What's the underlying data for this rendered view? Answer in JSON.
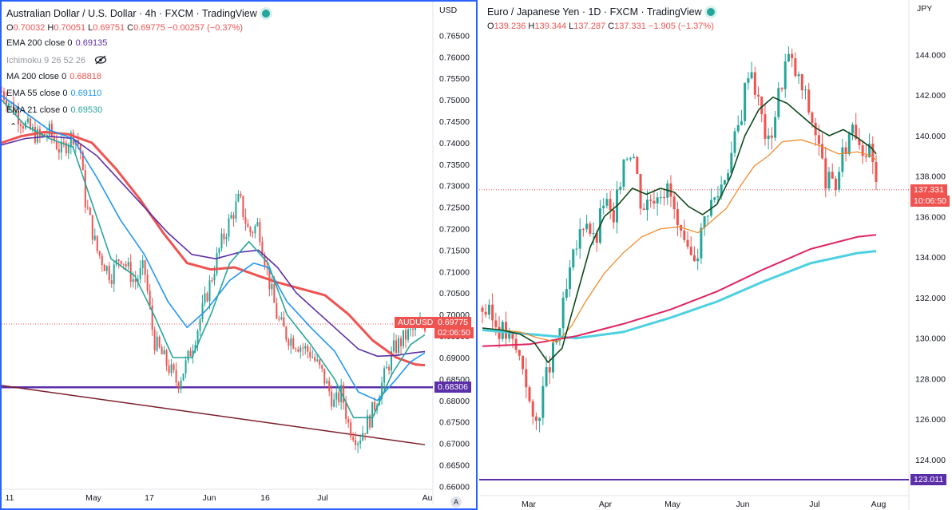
{
  "left_chart": {
    "title": "Australian Dollar / U.S. Dollar · 4h · FXCM · TradingView",
    "ohlc": {
      "o": "0.70032",
      "h": "0.70051",
      "l": "0.69751",
      "c": "0.69775",
      "chg": "−0.00257 (−0.37%)"
    },
    "indicators": [
      {
        "label": "EMA 200 close 0",
        "value": "0.69135",
        "color": "#5b2fa8"
      },
      {
        "label": "Ichimoku 9 26 52 26",
        "value": "",
        "color": "#9598a1"
      },
      {
        "label": "MA 200 close 0",
        "value": "0.68818",
        "color": "#ef5350"
      },
      {
        "label": "EMA 55 close 0",
        "value": "0.69110",
        "color": "#2196f3"
      },
      {
        "label": "EMA 21 close 0",
        "value": "0.69530",
        "color": "#26a69a"
      }
    ],
    "currency": "USD",
    "price_tag": {
      "symbol": "AUDUSD",
      "price": "0.69775",
      "countdown": "02:06:50"
    },
    "line_tag": "0.68306",
    "colors": {
      "ema200": "#5b2fa8",
      "ma200": "#ef5350",
      "ema55": "#2196f3",
      "ema21": "#26a69a",
      "up": "#26a69a",
      "down": "#ef5350",
      "hline": "#5b2fa8",
      "trend": "#7b1f2a"
    },
    "chart_data": {
      "type": "candlestick",
      "y_ticks": [
        "0.76500",
        "0.76000",
        "0.75500",
        "0.75000",
        "0.74500",
        "0.74000",
        "0.73500",
        "0.73000",
        "0.72500",
        "0.72000",
        "0.71500",
        "0.71000",
        "0.70500",
        "0.70000",
        "0.69500",
        "0.69000",
        "0.68500",
        "0.68000",
        "0.67500",
        "0.67000",
        "0.66500",
        "0.66000"
      ],
      "x_ticks": [
        "11",
        "May",
        "17",
        "Jun",
        "16",
        "Jul",
        "Au"
      ],
      "ylim": [
        0.6597,
        0.7673
      ],
      "price_path": [
        [
          0,
          0.752
        ],
        [
          10,
          0.744
        ],
        [
          16,
          0.741
        ],
        [
          20,
          0.7425
        ],
        [
          25,
          0.738
        ],
        [
          30,
          0.742
        ],
        [
          33,
          0.739
        ],
        [
          35,
          0.727
        ],
        [
          40,
          0.715
        ],
        [
          46,
          0.709
        ],
        [
          50,
          0.714
        ],
        [
          56,
          0.7075
        ],
        [
          60,
          0.711
        ],
        [
          64,
          0.694
        ],
        [
          70,
          0.688
        ],
        [
          74,
          0.684
        ],
        [
          78,
          0.689
        ],
        [
          82,
          0.696
        ],
        [
          88,
          0.708
        ],
        [
          92,
          0.716
        ],
        [
          96,
          0.722
        ],
        [
          100,
          0.727
        ],
        [
          104,
          0.719
        ],
        [
          108,
          0.721
        ],
        [
          112,
          0.709
        ],
        [
          116,
          0.699
        ],
        [
          120,
          0.695
        ],
        [
          125,
          0.693
        ],
        [
          130,
          0.691
        ],
        [
          135,
          0.686
        ],
        [
          140,
          0.679
        ],
        [
          143,
          0.682
        ],
        [
          146,
          0.674
        ],
        [
          150,
          0.671
        ],
        [
          155,
          0.676
        ],
        [
          160,
          0.684
        ],
        [
          165,
          0.692
        ],
        [
          170,
          0.695
        ],
        [
          175,
          0.697
        ],
        [
          178,
          0.6978
        ]
      ],
      "ema21_path": [
        [
          0,
          0.75
        ],
        [
          10,
          0.744
        ],
        [
          20,
          0.741
        ],
        [
          30,
          0.739
        ],
        [
          38,
          0.726
        ],
        [
          46,
          0.713
        ],
        [
          56,
          0.709
        ],
        [
          64,
          0.7
        ],
        [
          72,
          0.69
        ],
        [
          80,
          0.69
        ],
        [
          88,
          0.7
        ],
        [
          96,
          0.712
        ],
        [
          104,
          0.717
        ],
        [
          112,
          0.712
        ],
        [
          120,
          0.7
        ],
        [
          130,
          0.693
        ],
        [
          140,
          0.685
        ],
        [
          148,
          0.676
        ],
        [
          156,
          0.676
        ],
        [
          164,
          0.686
        ],
        [
          172,
          0.693
        ],
        [
          178,
          0.6953
        ]
      ],
      "ema55_path": [
        [
          0,
          0.751
        ],
        [
          10,
          0.747
        ],
        [
          20,
          0.743
        ],
        [
          30,
          0.741
        ],
        [
          40,
          0.732
        ],
        [
          50,
          0.722
        ],
        [
          60,
          0.714
        ],
        [
          70,
          0.703
        ],
        [
          78,
          0.697
        ],
        [
          86,
          0.701
        ],
        [
          96,
          0.708
        ],
        [
          106,
          0.712
        ],
        [
          112,
          0.711
        ],
        [
          120,
          0.703
        ],
        [
          130,
          0.697
        ],
        [
          140,
          0.6915
        ],
        [
          150,
          0.682
        ],
        [
          158,
          0.68
        ],
        [
          166,
          0.685
        ],
        [
          172,
          0.689
        ],
        [
          178,
          0.6911
        ]
      ],
      "ema200_path": [
        [
          0,
          0.7395
        ],
        [
          10,
          0.741
        ],
        [
          20,
          0.7415
        ],
        [
          30,
          0.741
        ],
        [
          40,
          0.737
        ],
        [
          50,
          0.731
        ],
        [
          60,
          0.725
        ],
        [
          70,
          0.719
        ],
        [
          80,
          0.714
        ],
        [
          90,
          0.713
        ],
        [
          100,
          0.7145
        ],
        [
          108,
          0.715
        ],
        [
          116,
          0.711
        ],
        [
          124,
          0.705
        ],
        [
          132,
          0.701
        ],
        [
          140,
          0.697
        ],
        [
          150,
          0.692
        ],
        [
          158,
          0.6903
        ],
        [
          166,
          0.6905
        ],
        [
          172,
          0.691
        ],
        [
          178,
          0.6914
        ]
      ],
      "ma200_path": [
        [
          0,
          0.74
        ],
        [
          8,
          0.7415
        ],
        [
          18,
          0.7425
        ],
        [
          28,
          0.742
        ],
        [
          38,
          0.74
        ],
        [
          48,
          0.734
        ],
        [
          58,
          0.727
        ],
        [
          68,
          0.719
        ],
        [
          78,
          0.712
        ],
        [
          88,
          0.7105
        ],
        [
          98,
          0.711
        ],
        [
          108,
          0.709
        ],
        [
          116,
          0.7075
        ],
        [
          126,
          0.706
        ],
        [
          136,
          0.7045
        ],
        [
          146,
          0.7
        ],
        [
          156,
          0.694
        ],
        [
          166,
          0.69
        ],
        [
          174,
          0.6884
        ],
        [
          178,
          0.6882
        ]
      ],
      "hline": 0.68306,
      "trendline": [
        [
          0,
          0.6835
        ],
        [
          178,
          0.6697
        ]
      ]
    }
  },
  "right_chart": {
    "title": "Euro / Japanese Yen · 1D · FXCM · TradingView",
    "ohlc": {
      "o": "139.236",
      "h": "139.344",
      "l": "137.287",
      "c": "137.331",
      "chg": "−1.905 (−1.37%)"
    },
    "currency": "JPY",
    "price_tag": {
      "price": "137.331",
      "countdown": "10:06:50"
    },
    "line_tag": "123.011",
    "colors": {
      "ma_a": "#0d4a1c",
      "ma_b": "#f0841f",
      "ma_c": "#e0245e",
      "ma_d": "#4dd0e1",
      "up": "#26a69a",
      "down": "#ef5350",
      "hline": "#5b2fa8"
    },
    "chart_data": {
      "type": "candlestick",
      "y_ticks": [
        "144.000",
        "142.000",
        "140.000",
        "138.000",
        "136.000",
        "134.000",
        "132.000",
        "130.000",
        "128.000",
        "126.000",
        "124.000"
      ],
      "x_ticks": [
        "Mar",
        "Apr",
        "May",
        "Jun",
        "Jul",
        "Aug"
      ],
      "ylim": [
        122.3,
        146.7
      ],
      "price_path": [
        [
          0,
          131.5
        ],
        [
          5,
          130.8
        ],
        [
          10,
          130.2
        ],
        [
          14,
          129.5
        ],
        [
          18,
          128.5
        ],
        [
          22,
          125.3
        ],
        [
          26,
          127.5
        ],
        [
          32,
          130.0
        ],
        [
          38,
          133.5
        ],
        [
          44,
          136.2
        ],
        [
          48,
          134.5
        ],
        [
          52,
          137.0
        ],
        [
          56,
          135.5
        ],
        [
          60,
          139.0
        ],
        [
          64,
          139.5
        ],
        [
          68,
          136.5
        ],
        [
          72,
          137.0
        ],
        [
          76,
          137.5
        ],
        [
          80,
          137.2
        ],
        [
          84,
          135.0
        ],
        [
          88,
          133.8
        ],
        [
          92,
          134.5
        ],
        [
          96,
          136.5
        ],
        [
          100,
          137.0
        ],
        [
          106,
          139.0
        ],
        [
          110,
          140.8
        ],
        [
          114,
          143.8
        ],
        [
          118,
          141.5
        ],
        [
          122,
          139.5
        ],
        [
          126,
          141.8
        ],
        [
          130,
          144.0
        ],
        [
          134,
          143.0
        ],
        [
          138,
          141.8
        ],
        [
          142,
          140.3
        ],
        [
          146,
          138.0
        ],
        [
          150,
          137.3
        ],
        [
          154,
          139.0
        ],
        [
          158,
          140.8
        ],
        [
          162,
          139.5
        ],
        [
          166,
          139.0
        ],
        [
          168,
          137.33
        ]
      ],
      "ma_a_path": [
        [
          0,
          130.5
        ],
        [
          8,
          130.4
        ],
        [
          16,
          130.2
        ],
        [
          22,
          129.8
        ],
        [
          28,
          128.8
        ],
        [
          34,
          129.5
        ],
        [
          40,
          132.0
        ],
        [
          46,
          134.5
        ],
        [
          52,
          136.0
        ],
        [
          58,
          136.6
        ],
        [
          64,
          137.4
        ],
        [
          70,
          137.1
        ],
        [
          76,
          137.4
        ],
        [
          82,
          137.2
        ],
        [
          88,
          136.5
        ],
        [
          94,
          136.1
        ],
        [
          100,
          136.6
        ],
        [
          106,
          138.0
        ],
        [
          112,
          140.0
        ],
        [
          118,
          141.3
        ],
        [
          124,
          141.9
        ],
        [
          130,
          141.6
        ],
        [
          136,
          141.0
        ],
        [
          142,
          140.4
        ],
        [
          148,
          140.0
        ],
        [
          154,
          140.3
        ],
        [
          160,
          139.9
        ],
        [
          166,
          139.4
        ],
        [
          168,
          139.1
        ]
      ],
      "ma_b_path": [
        [
          0,
          130.5
        ],
        [
          8,
          130.4
        ],
        [
          16,
          130.3
        ],
        [
          24,
          130.0
        ],
        [
          32,
          129.8
        ],
        [
          38,
          130.6
        ],
        [
          44,
          131.8
        ],
        [
          52,
          133.2
        ],
        [
          60,
          134.2
        ],
        [
          68,
          135.0
        ],
        [
          76,
          135.4
        ],
        [
          84,
          135.5
        ],
        [
          92,
          135.2
        ],
        [
          98,
          135.8
        ],
        [
          104,
          136.4
        ],
        [
          110,
          137.5
        ],
        [
          116,
          138.5
        ],
        [
          122,
          139.0
        ],
        [
          128,
          139.7
        ],
        [
          136,
          139.8
        ],
        [
          144,
          139.5
        ],
        [
          152,
          139.1
        ],
        [
          160,
          139.2
        ],
        [
          166,
          139.0
        ],
        [
          168,
          138.8
        ]
      ],
      "ma_c_path": [
        [
          0,
          129.6
        ],
        [
          20,
          129.7
        ],
        [
          40,
          130.1
        ],
        [
          60,
          130.7
        ],
        [
          80,
          131.4
        ],
        [
          100,
          132.3
        ],
        [
          120,
          133.4
        ],
        [
          140,
          134.4
        ],
        [
          160,
          135.0
        ],
        [
          168,
          135.1
        ]
      ],
      "ma_d_path": [
        [
          0,
          130.4
        ],
        [
          20,
          130.2
        ],
        [
          40,
          130.0
        ],
        [
          60,
          130.3
        ],
        [
          80,
          131.0
        ],
        [
          100,
          131.8
        ],
        [
          120,
          132.8
        ],
        [
          140,
          133.7
        ],
        [
          160,
          134.2
        ],
        [
          168,
          134.3
        ]
      ],
      "hline": 123.011
    }
  }
}
